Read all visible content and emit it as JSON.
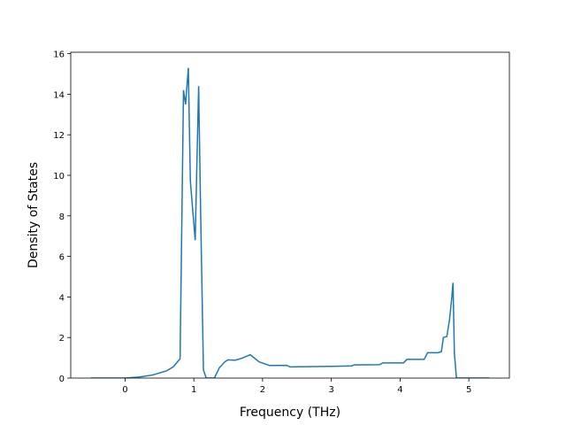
{
  "chart_data": {
    "type": "line",
    "x_label": "Frequency (THz)",
    "y_label": "Density of States",
    "xlim": [
      -0.79,
      5.59
    ],
    "ylim": [
      0,
      16.07
    ],
    "xticks": [
      0,
      1,
      2,
      3,
      4,
      5
    ],
    "yticks": [
      0,
      2,
      4,
      6,
      8,
      10,
      12,
      14,
      16
    ],
    "series": [
      {
        "color": "#1f77b4",
        "x": [
          -0.5,
          0,
          0.2,
          0.4,
          0.6,
          0.7,
          0.8,
          0.85,
          0.88,
          0.92,
          0.95,
          1.02,
          1.07,
          1.1,
          1.14,
          1.18,
          1.3,
          1.37,
          1.45,
          1.5,
          1.6,
          1.7,
          1.82,
          1.95,
          2.1,
          2.35,
          2.4,
          3.0,
          3.3,
          3.33,
          3.7,
          3.75,
          4.05,
          4.1,
          4.35,
          4.4,
          4.55,
          4.6,
          4.63,
          4.68,
          4.72,
          4.75,
          4.77,
          4.79,
          4.82,
          5.3
        ],
        "values": [
          0,
          0,
          0.05,
          0.15,
          0.35,
          0.55,
          0.95,
          14.2,
          13.5,
          15.3,
          9.7,
          6.8,
          14.4,
          8,
          0.4,
          0,
          0,
          0.5,
          0.8,
          0.9,
          0.88,
          0.98,
          1.15,
          0.8,
          0.62,
          0.63,
          0.55,
          0.58,
          0.6,
          0.65,
          0.66,
          0.75,
          0.75,
          0.92,
          0.92,
          1.25,
          1.25,
          1.3,
          2.0,
          2.05,
          2.9,
          3.9,
          4.7,
          1.2,
          0,
          0
        ]
      }
    ]
  }
}
